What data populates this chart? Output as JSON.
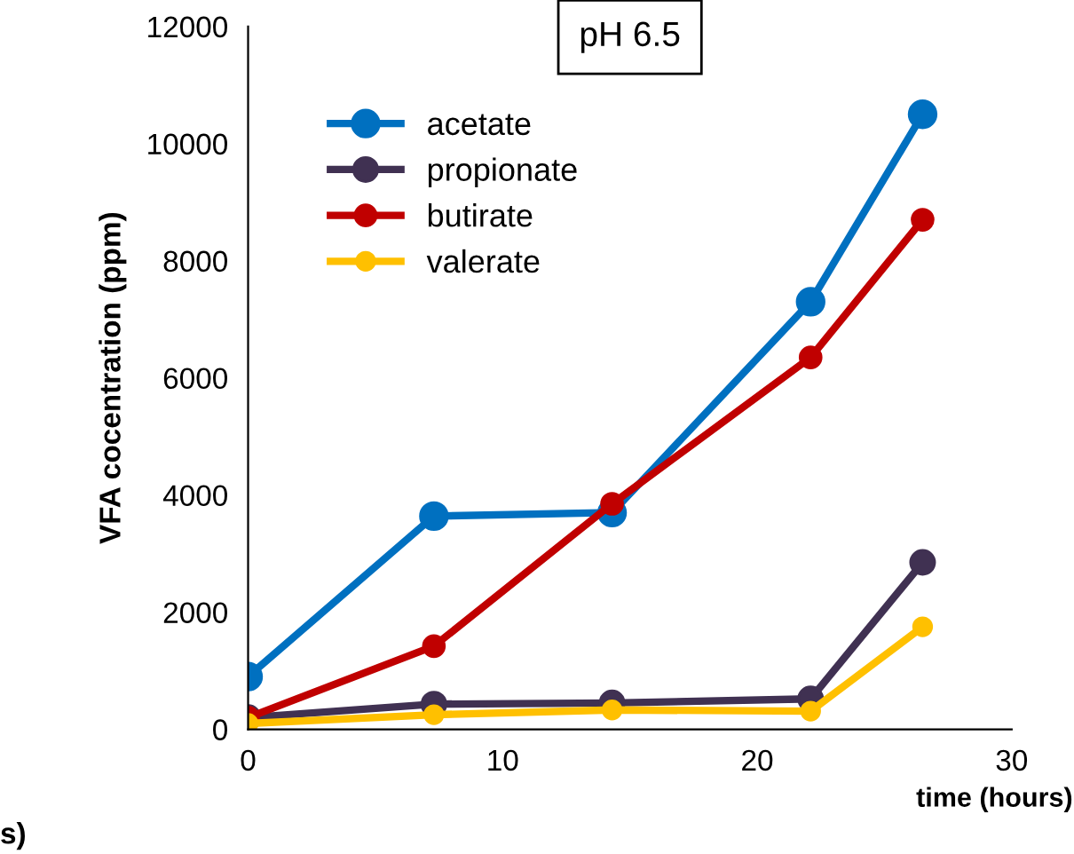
{
  "chart_data": {
    "type": "line",
    "title": "pH 6.5",
    "xlabel": "time (hours)",
    "ylabel": "VFA cocentration (ppm)",
    "x": [
      0,
      7.3,
      14.3,
      22.1,
      26.5
    ],
    "series": [
      {
        "name": "acetate",
        "color": "#0070c0",
        "values": [
          900,
          3640,
          3700,
          7300,
          10500
        ]
      },
      {
        "name": "propionate",
        "color": "#403152",
        "values": [
          200,
          430,
          450,
          520,
          2850
        ]
      },
      {
        "name": "butirate",
        "color": "#c00000",
        "values": [
          200,
          1420,
          3850,
          6350,
          8700
        ]
      },
      {
        "name": "valerate",
        "color": "#ffc000",
        "values": [
          100,
          250,
          330,
          310,
          1750
        ]
      }
    ],
    "xlim": [
      0,
      30
    ],
    "xticks": [
      0,
      10,
      20,
      30
    ],
    "ylim": [
      0,
      12000
    ],
    "yticks": [
      0,
      2000,
      4000,
      6000,
      8000,
      10000,
      12000
    ],
    "grid": false,
    "legend": "top left",
    "marker": "circle",
    "line_style": "solid",
    "annotations": [
      "s)"
    ]
  }
}
